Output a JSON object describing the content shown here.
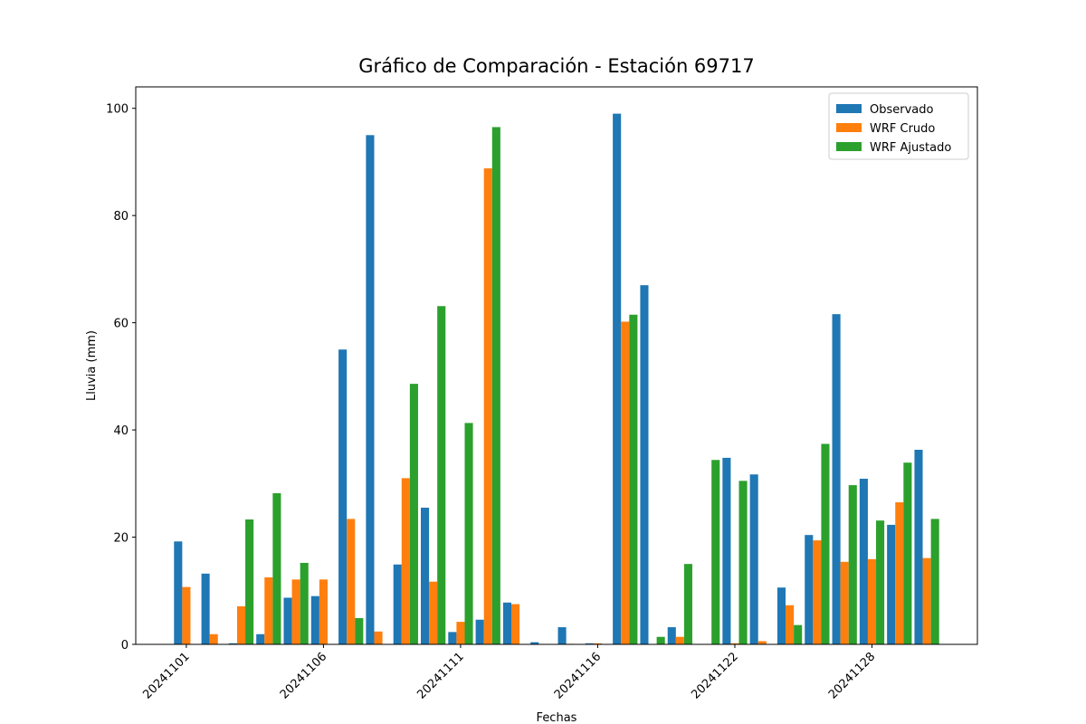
{
  "chart_data": {
    "type": "bar",
    "title": "Gráfico de Comparación - Estación 69717",
    "x_label": "Fechas",
    "y_label": "Lluvia (mm)",
    "categories": [
      "20241101",
      null,
      null,
      null,
      null,
      "20241106",
      null,
      null,
      null,
      null,
      "20241111",
      null,
      null,
      null,
      null,
      "20241116",
      null,
      null,
      null,
      null,
      "20241122",
      null,
      null,
      null,
      null,
      "20241128",
      null,
      null
    ],
    "series": [
      {
        "name": "Observado",
        "color": "#1f77b4",
        "values": [
          19.2,
          13.2,
          0.2,
          1.9,
          8.7,
          9.0,
          55.0,
          95.0,
          14.9,
          25.5,
          2.3,
          4.6,
          7.8,
          0.4,
          3.2,
          0.2,
          99.0,
          67.0,
          3.2,
          0,
          34.8,
          31.7,
          10.6,
          20.4,
          61.6,
          30.9,
          22.3,
          36.3
        ]
      },
      {
        "name": "WRF Crudo",
        "color": "#ff7f0e",
        "values": [
          10.7,
          1.9,
          7.1,
          12.5,
          12.1,
          12.1,
          23.4,
          2.4,
          31.0,
          11.7,
          4.2,
          88.8,
          7.5,
          0,
          0.1,
          0.2,
          60.2,
          0,
          1.4,
          0,
          0.2,
          0.6,
          7.3,
          19.4,
          15.4,
          15.9,
          26.5,
          16.1
        ]
      },
      {
        "name": "WRF Ajustado",
        "color": "#2ca02c",
        "values": [
          0,
          0,
          23.3,
          28.2,
          15.2,
          0,
          4.9,
          0,
          48.6,
          63.1,
          41.3,
          96.5,
          0,
          0,
          0,
          0,
          61.5,
          1.4,
          15.0,
          34.4,
          30.5,
          0,
          3.6,
          37.4,
          29.7,
          23.1,
          33.9,
          23.4
        ]
      }
    ],
    "ylim": [
      0,
      104
    ],
    "yticks": [
      0,
      20,
      40,
      60,
      80,
      100
    ],
    "legend": "upper right"
  }
}
